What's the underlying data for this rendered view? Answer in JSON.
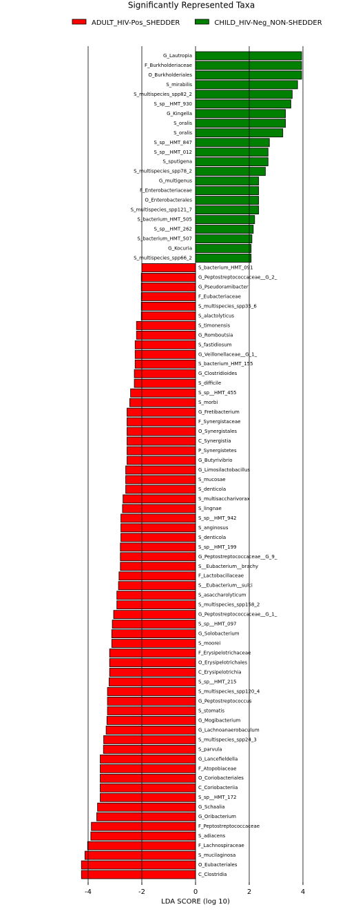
{
  "chart_data": {
    "type": "bar",
    "orientation": "horizontal",
    "title": "Significantly Represented Taxa",
    "x_label": "LDA SCORE (log 10)",
    "categories": [
      "G_Lautropia",
      "F_Burkholderiaceae",
      "O_Burkholderiales",
      "S_mirabilis",
      "S_multispecies_spp82_2",
      "S_sp__HMT_930",
      "G_Kingella",
      "S_oralis",
      "S_oralis",
      "S_sp__HMT_847",
      "S_sp__HMT_012",
      "S_sputigena",
      "S_multispecies_spp78_2",
      "G_multigenus",
      "F_Enterobacteriaceae",
      "O_Enterobacterales",
      "S_multispecies_spp121_7",
      "S_bacterium_HMT_505",
      "S_sp__HMT_262",
      "S_bacterium_HMT_507",
      "G_Kocuria",
      "S_multispecies_spp66_2",
      "S_bacterium_HMT_091",
      "G_Peptostreptococcaceae__G_2_",
      "G_Pseudoramibacter",
      "F_Eubacteriaceae",
      "S_multispecies_spp35_6",
      "S_alactolyticus",
      "S_timonensis",
      "G_Romboutsia",
      "S_fastidiosum",
      "G_Veillonellaceae__G_1_",
      "S_bacterium_HMT_155",
      "G_Clostridioides",
      "S_difficile",
      "S_sp__HMT_455",
      "S_morbi",
      "G_Fretibacterium",
      "F_Synergistaceae",
      "O_Synergistales",
      "C_Synergistia",
      "P_Synergistetes",
      "G_Butyrivibrio",
      "G_Limosilactobacillus",
      "S_mucosae",
      "S_denticola",
      "S_multisaccharivorax",
      "S_lingnae",
      "S_sp__HMT_942",
      "S_anginosus",
      "S_denticola",
      "S_sp__HMT_199",
      "G_Peptostreptococcaceae__G_9_",
      "S__Eubacterium__brachy",
      "F_Lactobacillaceae",
      "S__Eubacterium__sulci",
      "S_asaccharolyticum",
      "S_multispecies_spp158_2",
      "G_Peptostreptococcaceae__G_1_",
      "S_sp__HMT_097",
      "G_Solobacterium",
      "S_moorei",
      "F_Erysipelotrichaceae",
      "O_Erysipelotrichales",
      "C_Erysipelotrichia",
      "S_sp__HMT_215",
      "S_multispecies_spp120_4",
      "G_Peptostreptococcus",
      "S_stomatis",
      "G_Mogibacterium",
      "G_Lachnoanaerobaculum",
      "S_multispecies_spp24_3",
      "S_parvula",
      "G_Lancefieldella",
      "F_Atopobiaceae",
      "O_Coriobacteriales",
      "C_Coriobacteriia",
      "S_sp__HMT_172",
      "G_Schaalia",
      "G_Oribacterium",
      "F_Peptostreptococcaceae",
      "S_adiacens",
      "F_Lachnospiraceae",
      "S_mucilaginosa",
      "O_Eubacteriales",
      "C_Clostridia"
    ],
    "series": [
      {
        "name": "ADULT_HIV-Pos_SHEDDER",
        "color": "#ff0000",
        "values": [
          null,
          null,
          null,
          null,
          null,
          null,
          null,
          null,
          null,
          null,
          null,
          null,
          null,
          null,
          null,
          null,
          null,
          null,
          null,
          null,
          null,
          null,
          -2.0,
          -2.02,
          -2.02,
          -2.02,
          -2.02,
          -2.02,
          -2.2,
          -2.2,
          -2.25,
          -2.25,
          -2.25,
          -2.28,
          -2.28,
          -2.42,
          -2.45,
          -2.55,
          -2.55,
          -2.55,
          -2.55,
          -2.55,
          -2.55,
          -2.6,
          -2.6,
          -2.6,
          -2.7,
          -2.72,
          -2.78,
          -2.78,
          -2.78,
          -2.8,
          -2.8,
          -2.8,
          -2.85,
          -2.87,
          -2.93,
          -2.93,
          -3.05,
          -3.1,
          -3.12,
          -3.12,
          -3.2,
          -3.2,
          -3.2,
          -3.22,
          -3.28,
          -3.28,
          -3.28,
          -3.3,
          -3.33,
          -3.42,
          -3.43,
          -3.55,
          -3.55,
          -3.55,
          -3.55,
          -3.55,
          -3.65,
          -3.68,
          -3.88,
          -3.9,
          -4.02,
          -4.12,
          -4.25,
          -4.25
        ]
      },
      {
        "name": "CHILD_HIV-Neg_NON-SHEDDER",
        "color": "#008000",
        "values": [
          3.95,
          3.95,
          3.95,
          3.8,
          3.6,
          3.55,
          3.35,
          3.35,
          3.25,
          2.75,
          2.7,
          2.7,
          2.6,
          2.35,
          2.35,
          2.35,
          2.35,
          2.2,
          2.15,
          2.1,
          2.07,
          2.07,
          null,
          null,
          null,
          null,
          null,
          null,
          null,
          null,
          null,
          null,
          null,
          null,
          null,
          null,
          null,
          null,
          null,
          null,
          null,
          null,
          null,
          null,
          null,
          null,
          null,
          null,
          null,
          null,
          null,
          null,
          null,
          null,
          null,
          null,
          null,
          null,
          null,
          null,
          null,
          null,
          null,
          null,
          null,
          null,
          null,
          null,
          null,
          null,
          null,
          null,
          null,
          null,
          null,
          null,
          null,
          null,
          null,
          null,
          null,
          null,
          null,
          null,
          null,
          null
        ]
      }
    ],
    "xlim": [
      -4.5,
      4.5
    ],
    "xticks": [
      -4,
      -2,
      0,
      2,
      4
    ],
    "grid": true,
    "legend": "top"
  }
}
